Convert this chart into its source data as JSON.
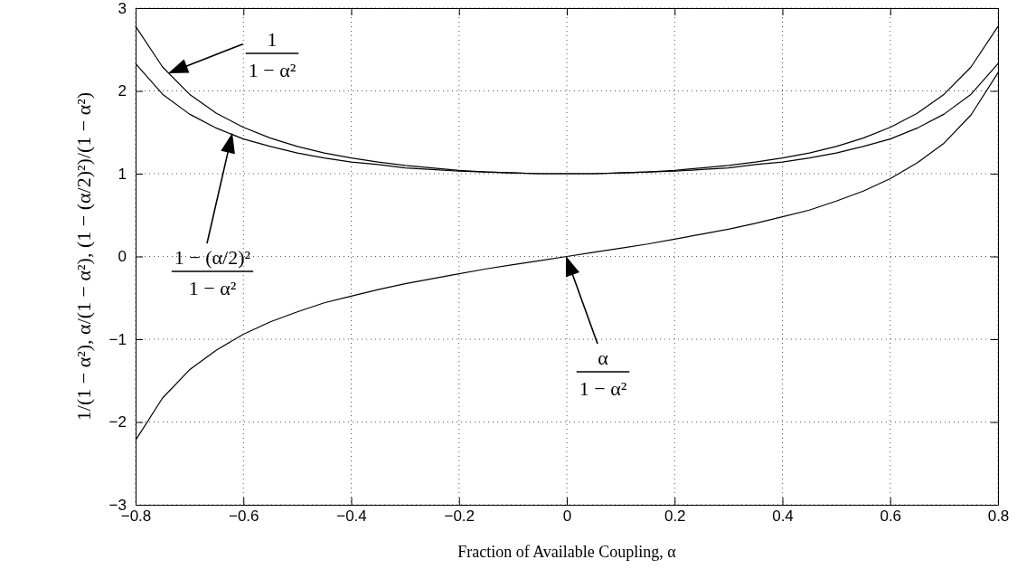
{
  "chart_data": {
    "type": "line",
    "xlabel": "Fraction of Available Coupling, α",
    "ylabel": "1/(1 − α²), α/(1 − α²), (1 − (α/2)²)/(1 − α²)",
    "x": [
      -0.8,
      -0.75,
      -0.7,
      -0.65,
      -0.6,
      -0.55,
      -0.5,
      -0.45,
      -0.4,
      -0.35,
      -0.3,
      -0.25,
      -0.2,
      -0.15,
      -0.1,
      -0.05,
      0,
      0.05,
      0.1,
      0.15,
      0.2,
      0.25,
      0.3,
      0.35,
      0.4,
      0.45,
      0.5,
      0.55,
      0.6,
      0.65,
      0.7,
      0.75,
      0.8
    ],
    "series": [
      {
        "color": "#000000",
        "values": [
          2.78,
          2.29,
          1.96,
          1.73,
          1.56,
          1.43,
          1.33,
          1.25,
          1.19,
          1.14,
          1.1,
          1.07,
          1.04,
          1.02,
          1.01,
          1.0,
          1,
          1.0,
          1.01,
          1.02,
          1.04,
          1.07,
          1.1,
          1.14,
          1.19,
          1.25,
          1.33,
          1.43,
          1.56,
          1.73,
          1.96,
          2.29,
          2.78
        ]
      },
      {
        "color": "#000000",
        "values": [
          2.33,
          1.96,
          1.72,
          1.55,
          1.42,
          1.33,
          1.25,
          1.19,
          1.14,
          1.11,
          1.07,
          1.05,
          1.03,
          1.02,
          1.01,
          1.0,
          1,
          1.0,
          1.01,
          1.02,
          1.03,
          1.05,
          1.07,
          1.11,
          1.14,
          1.19,
          1.25,
          1.33,
          1.42,
          1.55,
          1.72,
          1.96,
          2.33
        ]
      },
      {
        "color": "#000000",
        "values": [
          -2.22,
          -1.71,
          -1.37,
          -1.13,
          -0.94,
          -0.79,
          -0.67,
          -0.56,
          -0.48,
          -0.4,
          -0.33,
          -0.27,
          -0.21,
          -0.15,
          -0.1,
          -0.05,
          0,
          0.05,
          0.1,
          0.15,
          0.21,
          0.27,
          0.33,
          0.4,
          0.48,
          0.56,
          0.67,
          0.79,
          0.94,
          1.13,
          1.37,
          1.71,
          2.22
        ]
      }
    ],
    "xlim": [
      -0.8,
      0.8
    ],
    "xticks": [
      -0.8,
      -0.6,
      -0.4,
      -0.2,
      0,
      0.2,
      0.4,
      0.6,
      0.8
    ],
    "ylim": [
      -3,
      3
    ],
    "yticks": [
      -3,
      -2,
      -1,
      0,
      1,
      2,
      3
    ],
    "grid": true,
    "line_style": "solid",
    "marker": "none",
    "annotations": [
      "1\n1 − α²",
      "1 − (α/2)²\n1 − α²",
      "α\n1 − α²"
    ]
  }
}
